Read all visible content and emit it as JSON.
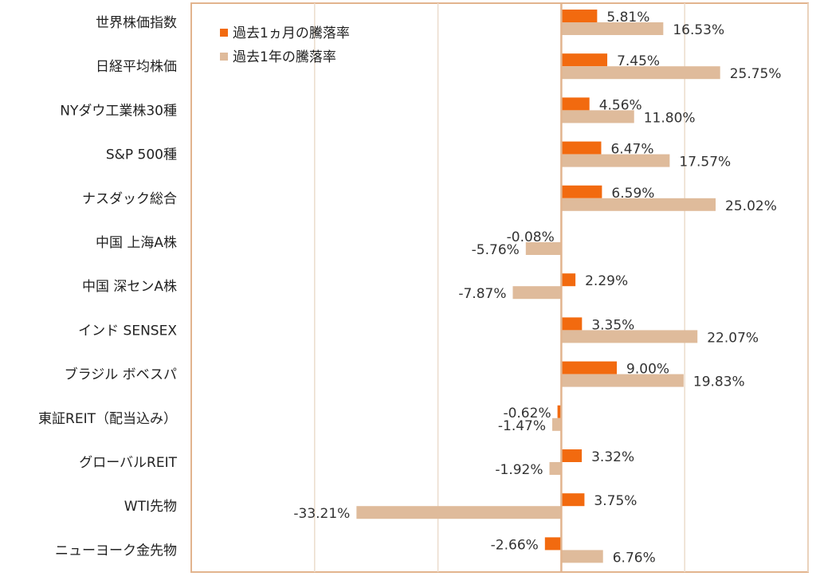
{
  "chart_data": {
    "type": "bar",
    "orientation": "horizontal",
    "categories": [
      "世界株価指数",
      "日経平均株価",
      "NYダウ工業株30種",
      "S&P 500種",
      "ナスダック総合",
      "中国 上海A株",
      "中国 深センA株",
      "インド SENSEX",
      "ブラジル ボベスパ",
      "東証REIT（配当込み）",
      "グローバルREIT",
      "WTI先物",
      "ニューヨーク金先物"
    ],
    "series": [
      {
        "name": "過去1ヵ月の騰落率",
        "color": "#f26a0f",
        "values": [
          5.81,
          7.45,
          4.56,
          6.47,
          6.59,
          -0.08,
          2.29,
          3.35,
          9.0,
          -0.62,
          3.32,
          3.75,
          -2.66
        ],
        "labels": [
          "5.81%",
          "7.45%",
          "4.56%",
          "6.47%",
          "6.59%",
          "-0.08%",
          "2.29%",
          "3.35%",
          "9.00%",
          "-0.62%",
          "3.32%",
          "3.75%",
          "-2.66%"
        ]
      },
      {
        "name": "過去1年の騰落率",
        "color": "#dfbb9b",
        "values": [
          16.53,
          25.75,
          11.8,
          17.57,
          25.02,
          -5.76,
          -7.87,
          22.07,
          19.83,
          -1.47,
          -1.92,
          -33.21,
          6.76
        ],
        "labels": [
          "16.53%",
          "25.75%",
          "11.80%",
          "17.57%",
          "25.02%",
          "-5.76%",
          "-7.87%",
          "22.07%",
          "19.83%",
          "-1.47%",
          "-1.92%",
          "-33.21%",
          "6.76%"
        ]
      }
    ],
    "xlim": [
      -60,
      40
    ],
    "grid": true,
    "gridlines_at": [
      -40,
      -20,
      20,
      40
    ],
    "legend_position": "top-left",
    "frame_color": "#e2b48e",
    "grid_color": "#ecdccc"
  }
}
